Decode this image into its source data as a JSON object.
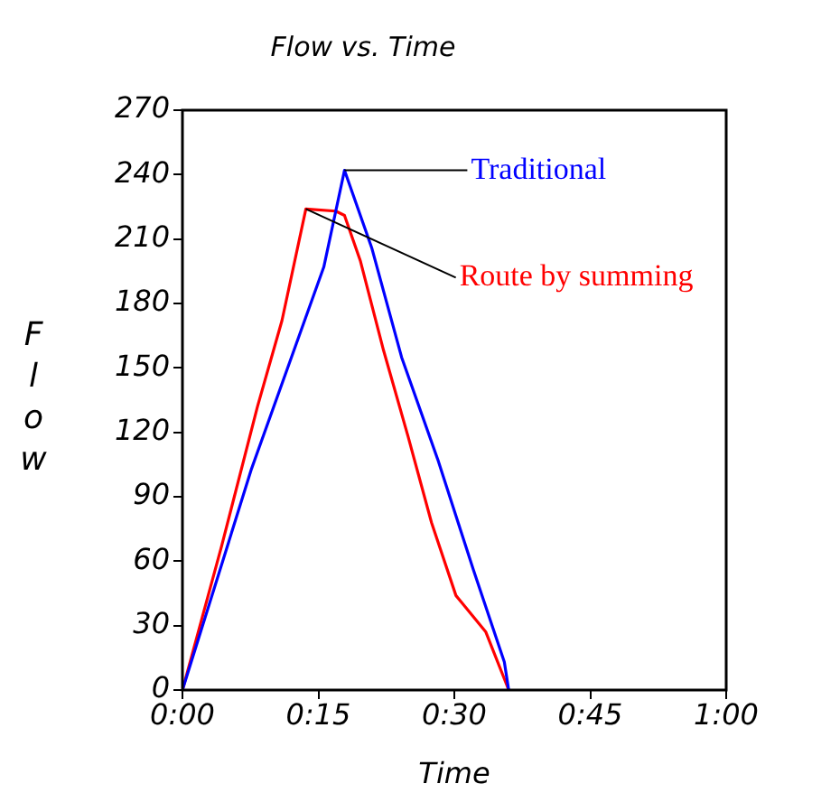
{
  "chart_data": {
    "type": "line",
    "title": "Flow vs. Time",
    "xlabel": "Time",
    "ylabel": "Flow",
    "x": [
      0,
      0.127,
      0.26,
      0.298,
      0.348,
      0.403,
      0.47,
      0.535,
      0.592,
      0.6
    ],
    "series": [
      {
        "name": "Traditional",
        "color": "#0000ff",
        "values": [
          0,
          103,
          197,
          242,
          206,
          155,
          107,
          56,
          13,
          0
        ]
      },
      {
        "name": "Route by summing",
        "color": "#ff0000",
        "x": [
          0,
          0.072,
          0.138,
          0.183,
          0.227,
          0.282,
          0.298,
          0.327,
          0.37,
          0.415,
          0.458,
          0.503,
          0.558,
          0.597,
          0.6
        ],
        "values": [
          0,
          67,
          132,
          172,
          224,
          223,
          221,
          200,
          158,
          118,
          78,
          44,
          27,
          2,
          0
        ]
      }
    ],
    "xlim": [
      0,
      1
    ],
    "xticks": [
      {
        "value": 0,
        "label": "0:00"
      },
      {
        "value": 0.25,
        "label": "0:15"
      },
      {
        "value": 0.5,
        "label": "0:30"
      },
      {
        "value": 0.75,
        "label": "0:45"
      },
      {
        "value": 1,
        "label": "1:00"
      }
    ],
    "ylim": [
      0,
      270
    ],
    "yticks": [
      0,
      30,
      60,
      90,
      120,
      150,
      180,
      210,
      240,
      270
    ],
    "grid": false,
    "legend": false,
    "marker": "none",
    "line_style": "solid"
  }
}
